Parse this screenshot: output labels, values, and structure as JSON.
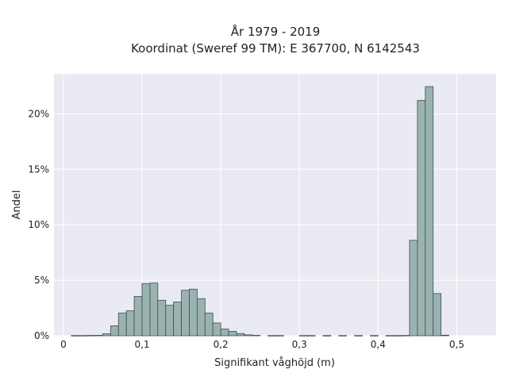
{
  "chart_data": {
    "type": "bar",
    "title": "År 1979 - 2019",
    "subtitle": "Koordinat (Sweref 99 TM): E 367700, N 6142543",
    "xlabel": "Signifikant våghöjd (m)",
    "ylabel": "Andel",
    "xlim": [
      -0.012,
      0.55
    ],
    "ylim": [
      0,
      0.236
    ],
    "xticks": [
      0,
      0.1,
      0.2,
      0.3,
      0.4,
      0.5
    ],
    "xtick_labels": [
      "0",
      "0,1",
      "0,2",
      "0,3",
      "0,4",
      "0,5"
    ],
    "yticks": [
      0,
      0.05,
      0.1,
      0.15,
      0.2
    ],
    "ytick_labels": [
      "0%",
      "5%",
      "10%",
      "15%",
      "20%"
    ],
    "grid": true,
    "bin_width": 0.01,
    "bin_starts": [
      0.01,
      0.02,
      0.03,
      0.04,
      0.05,
      0.06,
      0.07,
      0.08,
      0.09,
      0.1,
      0.11,
      0.12,
      0.13,
      0.14,
      0.15,
      0.16,
      0.17,
      0.18,
      0.19,
      0.2,
      0.21,
      0.22,
      0.23,
      0.24,
      0.26,
      0.27,
      0.3,
      0.31,
      0.33,
      0.35,
      0.37,
      0.39,
      0.41,
      0.42,
      0.43,
      0.44,
      0.45,
      0.46,
      0.47,
      0.48
    ],
    "values": [
      0.0002,
      0.0002,
      0.0003,
      0.0004,
      0.0018,
      0.009,
      0.0205,
      0.0225,
      0.0355,
      0.047,
      0.0475,
      0.032,
      0.0275,
      0.0305,
      0.041,
      0.042,
      0.0335,
      0.0205,
      0.0115,
      0.006,
      0.004,
      0.002,
      0.0008,
      0.0004,
      0.0002,
      0.0002,
      0.0002,
      0.0002,
      0.0002,
      0.0002,
      0.0002,
      0.0002,
      0.0002,
      0.0002,
      0.0003,
      0.086,
      0.212,
      0.2245,
      0.038,
      0.0005
    ],
    "bar_color": "#9ab3b1",
    "bar_edge_color": "#3c4f4e",
    "background_color": "#eaeaf2",
    "grid_color": "#ffffff"
  }
}
